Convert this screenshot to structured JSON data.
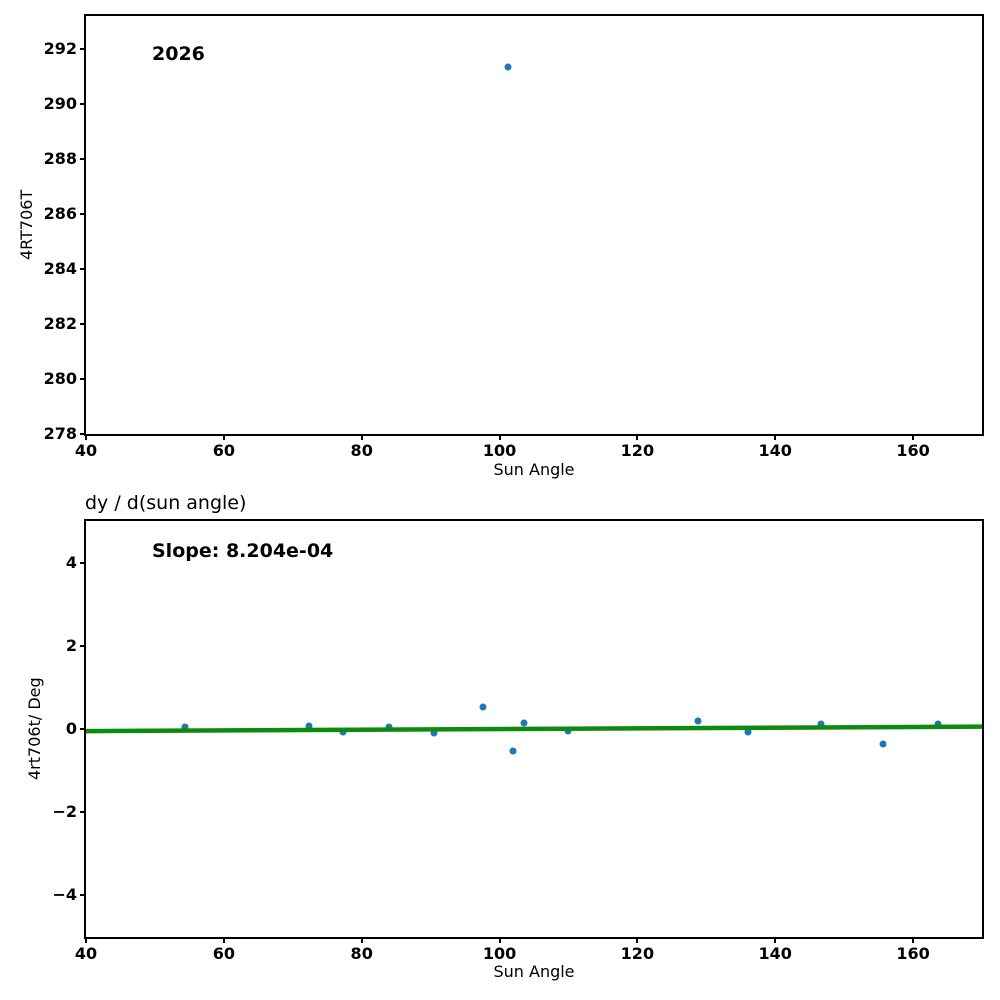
{
  "chart_data": [
    {
      "type": "scatter",
      "title": "",
      "annotation": "2026",
      "xlabel": "Sun Angle",
      "ylabel": "4RT706T",
      "xlim": [
        40,
        170
      ],
      "ylim": [
        278,
        293.2
      ],
      "grid": false,
      "legend": "none",
      "xticks": [
        {
          "v": 40,
          "label": "40"
        },
        {
          "v": 60,
          "label": "60"
        },
        {
          "v": 80,
          "label": "80"
        },
        {
          "v": 100,
          "label": "100"
        },
        {
          "v": 120,
          "label": "120"
        },
        {
          "v": 140,
          "label": "140"
        },
        {
          "v": 160,
          "label": "160"
        }
      ],
      "yticks": [
        {
          "v": 278,
          "label": "278"
        },
        {
          "v": 280,
          "label": "280"
        },
        {
          "v": 282,
          "label": "282"
        },
        {
          "v": 284,
          "label": "284"
        },
        {
          "v": 286,
          "label": "286"
        },
        {
          "v": 288,
          "label": "288"
        },
        {
          "v": 290,
          "label": "290"
        },
        {
          "v": 292,
          "label": "292"
        }
      ],
      "marker_color": "#1f77b4",
      "points": [
        [
          101.3,
          291.35
        ]
      ]
    },
    {
      "type": "scatter",
      "title": "dy / d(sun angle)",
      "annotation": "Slope: 8.204e-04",
      "slope": "8.204e-04",
      "xlabel": "Sun Angle",
      "ylabel": "4rt706t/ Deg",
      "xlim": [
        40,
        170
      ],
      "ylim": [
        -5,
        5
      ],
      "grid": false,
      "legend": "none",
      "xticks": [
        {
          "v": 40,
          "label": "40"
        },
        {
          "v": 60,
          "label": "60"
        },
        {
          "v": 80,
          "label": "80"
        },
        {
          "v": 100,
          "label": "100"
        },
        {
          "v": 120,
          "label": "120"
        },
        {
          "v": 140,
          "label": "140"
        },
        {
          "v": 160,
          "label": "160"
        }
      ],
      "yticks": [
        {
          "v": -4,
          "label": "−4"
        },
        {
          "v": -2,
          "label": "−2"
        },
        {
          "v": 0,
          "label": "0"
        },
        {
          "v": 2,
          "label": "2"
        },
        {
          "v": 4,
          "label": "4"
        }
      ],
      "marker_color": "#1f77b4",
      "points": [
        [
          54.4,
          0.05
        ],
        [
          72.4,
          0.07
        ],
        [
          77.3,
          -0.07
        ],
        [
          84.0,
          0.05
        ],
        [
          90.5,
          -0.1
        ],
        [
          97.6,
          0.53
        ],
        [
          102.0,
          -0.53
        ],
        [
          103.6,
          0.15
        ],
        [
          110.0,
          -0.05
        ],
        [
          128.8,
          0.19
        ],
        [
          136.0,
          -0.07
        ],
        [
          146.7,
          0.12
        ],
        [
          155.7,
          -0.36
        ],
        [
          163.6,
          0.12
        ]
      ],
      "trend": {
        "color": "#0c8c0c",
        "x1": 40,
        "y1": -0.05,
        "x2": 170,
        "y2": 0.057,
        "width": 4.5
      }
    }
  ]
}
